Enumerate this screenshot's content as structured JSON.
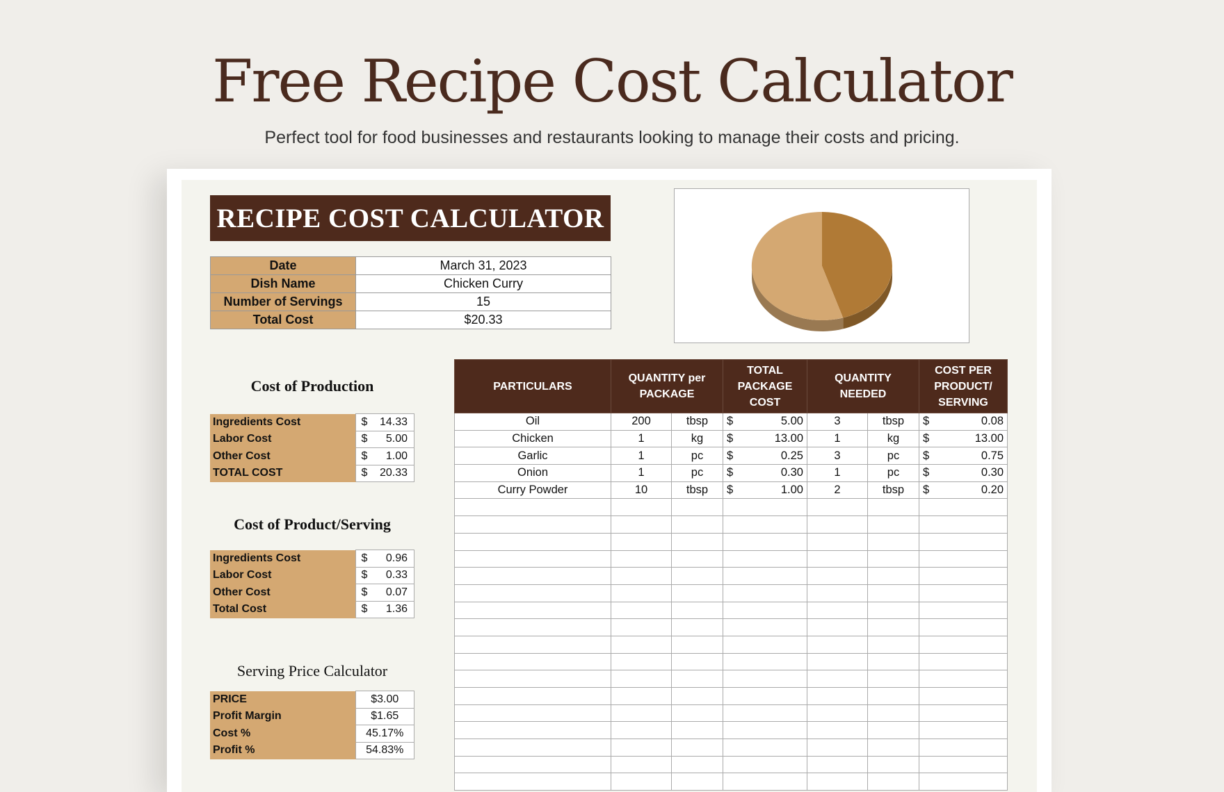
{
  "header": {
    "title": "Free Recipe Cost Calculator",
    "subtitle": "Perfect tool for food businesses and restaurants looking to manage their costs and pricing."
  },
  "banner": "RECIPE COST CALCULATOR",
  "info": [
    {
      "label": "Date",
      "value": "March 31, 2023"
    },
    {
      "label": "Dish Name",
      "value": "Chicken Curry"
    },
    {
      "label": "Number of Servings",
      "value": "15"
    },
    {
      "label": "Total Cost",
      "value": "$20.33"
    }
  ],
  "production": {
    "title": "Cost of Production",
    "rows": [
      {
        "label": "Ingredients Cost",
        "cur": "$",
        "amount": "14.33"
      },
      {
        "label": "Labor Cost",
        "cur": "$",
        "amount": "5.00"
      },
      {
        "label": "Other Cost",
        "cur": "$",
        "amount": "1.00"
      },
      {
        "label": "TOTAL COST",
        "cur": "$",
        "amount": "20.33"
      }
    ]
  },
  "per_serving": {
    "title": "Cost of Product/Serving",
    "rows": [
      {
        "label": "Ingredients Cost",
        "cur": "$",
        "amount": "0.96"
      },
      {
        "label": "Labor Cost",
        "cur": "$",
        "amount": "0.33"
      },
      {
        "label": "Other Cost",
        "cur": "$",
        "amount": "0.07"
      },
      {
        "label": "Total Cost",
        "cur": "$",
        "amount": "1.36"
      }
    ]
  },
  "pricing": {
    "title": "Serving Price Calculator",
    "rows": [
      {
        "label": "PRICE",
        "value": "$3.00"
      },
      {
        "label": "Profit Margin",
        "value": "$1.65"
      },
      {
        "label": "Cost %",
        "value": "45.17%"
      },
      {
        "label": "Profit %",
        "value": "54.83%"
      }
    ]
  },
  "chart_data": {
    "type": "pie",
    "slices": [
      {
        "value": 54.83,
        "color": "#d4a872"
      },
      {
        "value": 45.17,
        "color": "#b07a36"
      }
    ]
  },
  "table": {
    "headers": {
      "particulars": "PARTICULARS",
      "qty_pkg": "QUANTITY per PACKAGE",
      "total_pkg": "TOTAL PACKAGE COST",
      "qty_needed": "QUANTITY NEEDED",
      "cost_serving": "COST PER PRODUCT/ SERVING"
    },
    "rows": [
      {
        "item": "Oil",
        "pkg_qty": "200",
        "pkg_unit": "tbsp",
        "pkg_cur": "$",
        "pkg_cost": "5.00",
        "need_qty": "3",
        "need_unit": "tbsp",
        "srv_cur": "$",
        "srv_cost": "0.08"
      },
      {
        "item": "Chicken",
        "pkg_qty": "1",
        "pkg_unit": "kg",
        "pkg_cur": "$",
        "pkg_cost": "13.00",
        "need_qty": "1",
        "need_unit": "kg",
        "srv_cur": "$",
        "srv_cost": "13.00"
      },
      {
        "item": "Garlic",
        "pkg_qty": "1",
        "pkg_unit": "pc",
        "pkg_cur": "$",
        "pkg_cost": "0.25",
        "need_qty": "3",
        "need_unit": "pc",
        "srv_cur": "$",
        "srv_cost": "0.75"
      },
      {
        "item": "Onion",
        "pkg_qty": "1",
        "pkg_unit": "pc",
        "pkg_cur": "$",
        "pkg_cost": "0.30",
        "need_qty": "1",
        "need_unit": "pc",
        "srv_cur": "$",
        "srv_cost": "0.30"
      },
      {
        "item": "Curry Powder",
        "pkg_qty": "10",
        "pkg_unit": "tbsp",
        "pkg_cur": "$",
        "pkg_cost": "1.00",
        "need_qty": "2",
        "need_unit": "tbsp",
        "srv_cur": "$",
        "srv_cost": "0.20"
      }
    ]
  }
}
